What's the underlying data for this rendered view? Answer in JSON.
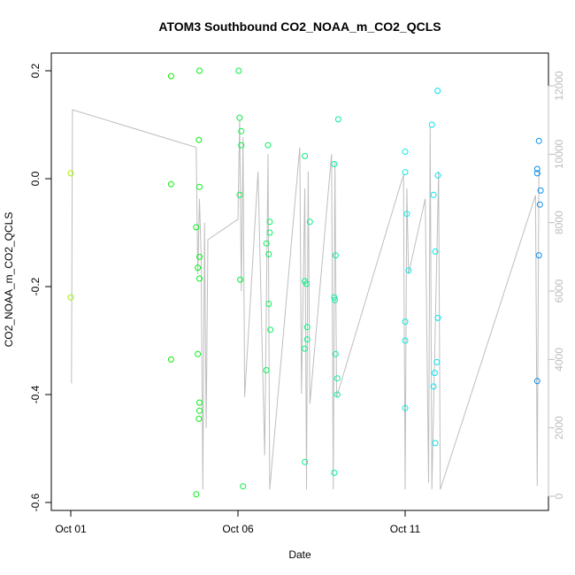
{
  "chart_data": {
    "type": "scatter",
    "title": "ATOM3 Southbound CO2_NOAA_m_CO2_QCLS",
    "xlabel": "Date",
    "ylabel": "CO2_NOAA_m_CO2_QCLS",
    "x_ticks": [
      "Oct 01",
      "Oct 06",
      "Oct 11"
    ],
    "xlim_days": [
      0.6,
      14.3
    ],
    "ylim": [
      -0.6,
      0.22
    ],
    "y_ticks": [
      -0.6,
      -0.4,
      -0.2,
      0.0,
      0.2
    ],
    "y2_label": "",
    "y2_ticks": [
      0,
      2000,
      4000,
      6000,
      8000,
      10000,
      12000
    ],
    "y2lim": [
      -300,
      12600
    ],
    "grid": false,
    "colors": {
      "line": "#bebebe",
      "axis": "#000000",
      "right_axis": "#bdbdbd"
    },
    "series": [
      {
        "type": "points",
        "points": [
          [
            0.0,
            0.01
          ],
          [
            0.0,
            -0.22
          ],
          [
            3.0,
            0.19
          ],
          [
            3.0,
            -0.01
          ],
          [
            3.0,
            -0.335
          ],
          [
            3.75,
            -0.09
          ],
          [
            3.75,
            -0.585
          ],
          [
            3.8,
            -0.165
          ],
          [
            3.8,
            -0.325
          ],
          [
            3.85,
            0.2
          ],
          [
            3.83,
            0.072
          ],
          [
            3.85,
            -0.015
          ],
          [
            3.85,
            -0.145
          ],
          [
            3.85,
            -0.185
          ],
          [
            3.85,
            -0.415
          ],
          [
            3.85,
            -0.43
          ],
          [
            3.83,
            -0.445
          ],
          [
            5.02,
            0.2
          ],
          [
            5.05,
            0.113
          ],
          [
            5.1,
            0.088
          ],
          [
            5.1,
            0.062
          ],
          [
            5.05,
            -0.03
          ],
          [
            5.07,
            -0.187
          ],
          [
            5.15,
            -0.57
          ],
          [
            5.85,
            -0.12
          ],
          [
            5.85,
            -0.355
          ],
          [
            5.9,
            0.062
          ],
          [
            5.95,
            -0.08
          ],
          [
            5.95,
            -0.1
          ],
          [
            5.92,
            -0.14
          ],
          [
            5.92,
            -0.232
          ],
          [
            5.97,
            -0.28
          ],
          [
            7.0,
            0.042
          ],
          [
            7.0,
            -0.19
          ],
          [
            7.05,
            -0.195
          ],
          [
            7.0,
            -0.315
          ],
          [
            7.07,
            -0.275
          ],
          [
            7.07,
            -0.298
          ],
          [
            7.0,
            -0.525
          ],
          [
            7.15,
            -0.08
          ],
          [
            7.88,
            0.027
          ],
          [
            7.88,
            -0.22
          ],
          [
            7.9,
            -0.225
          ],
          [
            7.92,
            -0.142
          ],
          [
            7.92,
            -0.325
          ],
          [
            7.97,
            -0.37
          ],
          [
            7.97,
            -0.4
          ],
          [
            7.88,
            -0.545
          ],
          [
            8.0,
            0.11
          ],
          [
            10.0,
            0.05
          ],
          [
            10.0,
            0.012
          ],
          [
            10.05,
            -0.065
          ],
          [
            10.1,
            -0.17
          ],
          [
            10.0,
            -0.265
          ],
          [
            10.0,
            -0.3
          ],
          [
            10.0,
            -0.425
          ],
          [
            10.8,
            0.1
          ],
          [
            10.85,
            -0.03
          ],
          [
            10.9,
            -0.135
          ],
          [
            10.88,
            -0.36
          ],
          [
            10.85,
            -0.385
          ],
          [
            10.9,
            -0.49
          ],
          [
            10.97,
            0.163
          ],
          [
            10.98,
            0.006
          ],
          [
            10.98,
            -0.258
          ],
          [
            10.95,
            -0.34
          ],
          [
            13.95,
            0.018
          ],
          [
            13.95,
            0.01
          ],
          [
            14.0,
            0.07
          ],
          [
            14.05,
            -0.022
          ],
          [
            14.03,
            -0.048
          ],
          [
            14.0,
            -0.142
          ],
          [
            13.95,
            -0.375
          ]
        ]
      },
      {
        "type": "altitude_line",
        "axis": "y2",
        "points": [
          [
            0.02,
            3300
          ],
          [
            0.05,
            11300
          ],
          [
            3.75,
            10200
          ],
          [
            3.8,
            6500
          ],
          [
            3.85,
            8700
          ],
          [
            3.9,
            7000
          ],
          [
            3.95,
            200
          ],
          [
            4.0,
            8000
          ],
          [
            4.05,
            2000
          ],
          [
            4.1,
            7500
          ],
          [
            5.0,
            8100
          ],
          [
            5.05,
            11000
          ],
          [
            5.1,
            6000
          ],
          [
            5.15,
            10500
          ],
          [
            5.2,
            2900
          ],
          [
            5.6,
            9500
          ],
          [
            5.8,
            1200
          ],
          [
            5.9,
            10000
          ],
          [
            5.95,
            200
          ],
          [
            6.85,
            10200
          ],
          [
            6.9,
            3000
          ],
          [
            7.0,
            9000
          ],
          [
            7.05,
            200
          ],
          [
            7.1,
            9500
          ],
          [
            7.15,
            2700
          ],
          [
            7.8,
            10000
          ],
          [
            7.85,
            200
          ],
          [
            7.9,
            9800
          ],
          [
            7.95,
            2900
          ],
          [
            9.95,
            9400
          ],
          [
            10.0,
            200
          ],
          [
            10.05,
            9000
          ],
          [
            10.1,
            6500
          ],
          [
            10.6,
            8700
          ],
          [
            10.7,
            400
          ],
          [
            10.75,
            10800
          ],
          [
            10.8,
            200
          ],
          [
            11.0,
            9500
          ],
          [
            11.05,
            200
          ],
          [
            13.9,
            8800
          ],
          [
            13.95,
            300
          ],
          [
            14.0,
            9500
          ],
          [
            14.05,
            9400
          ]
        ]
      }
    ]
  }
}
